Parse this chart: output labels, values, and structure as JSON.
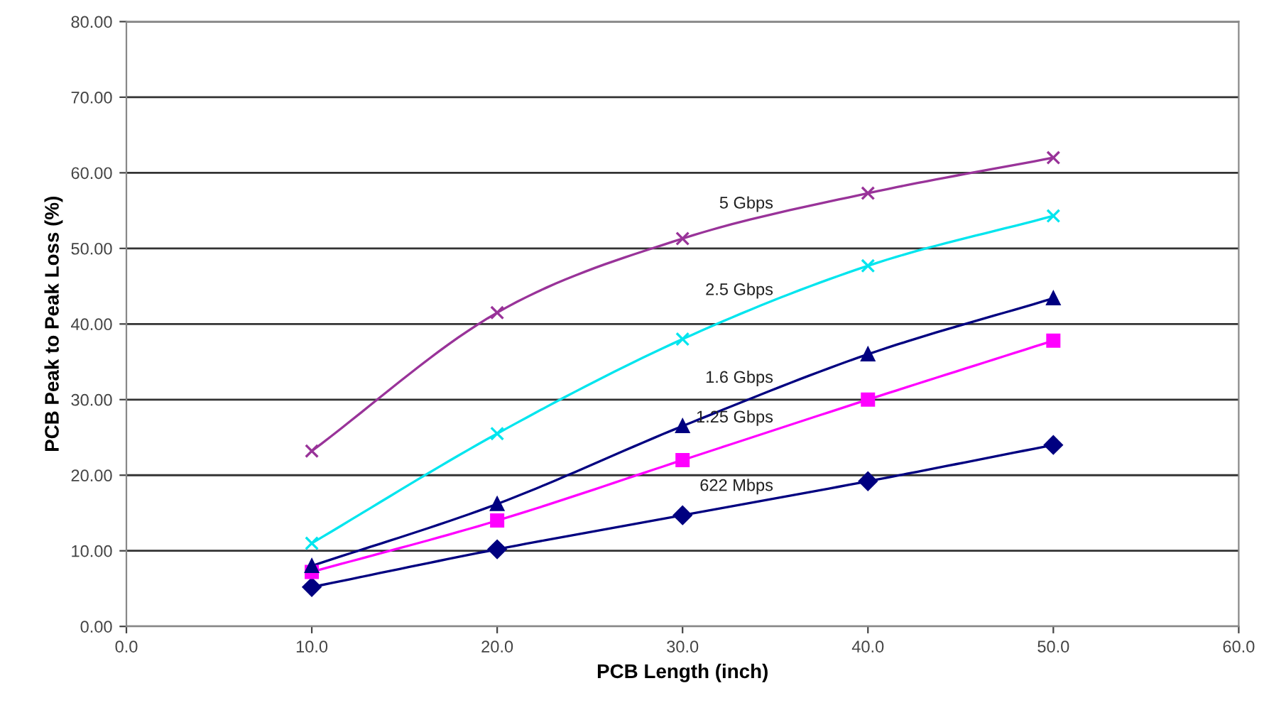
{
  "chart_data": {
    "type": "line",
    "xlabel": "PCB Length (inch)",
    "ylabel": "PCB Peak to Peak Loss (%)",
    "x": [
      10,
      20,
      30,
      40,
      50
    ],
    "series": [
      {
        "name": "5 Gbps",
        "color": "#993399",
        "marker": "cross",
        "values": [
          23.2,
          41.5,
          51.3,
          57.3,
          62.0
        ]
      },
      {
        "name": "2.5 Gbps",
        "color": "#00e5ee",
        "marker": "cross",
        "values": [
          11.0,
          25.5,
          38.0,
          47.7,
          54.3
        ]
      },
      {
        "name": "1.6 Gbps",
        "color": "#000080",
        "marker": "triangle",
        "values": [
          8.0,
          16.2,
          26.5,
          36.0,
          43.4
        ]
      },
      {
        "name": "1.25 Gbps",
        "color": "#ff00ff",
        "marker": "square",
        "values": [
          7.2,
          14.0,
          22.0,
          30.0,
          37.8
        ]
      },
      {
        "name": "622 Mbps",
        "color": "#000080",
        "marker": "diamond",
        "values": [
          5.2,
          10.2,
          14.7,
          19.2,
          24.0
        ]
      }
    ],
    "xlim": [
      0,
      60
    ],
    "ylim": [
      0,
      80
    ],
    "xticks": [
      {
        "value": 0,
        "label": "0.0"
      },
      {
        "value": 10,
        "label": "10.0"
      },
      {
        "value": 20,
        "label": "20.0"
      },
      {
        "value": 30,
        "label": "30.0"
      },
      {
        "value": 40,
        "label": "40.0"
      },
      {
        "value": 50,
        "label": "50.0"
      },
      {
        "value": 60,
        "label": "60.0"
      }
    ],
    "yticks": [
      {
        "value": 0,
        "label": "0.00"
      },
      {
        "value": 10,
        "label": "10.00"
      },
      {
        "value": 20,
        "label": "20.00"
      },
      {
        "value": 30,
        "label": "30.00"
      },
      {
        "value": 40,
        "label": "40.00"
      },
      {
        "value": 50,
        "label": "50.00"
      },
      {
        "value": 60,
        "label": "60.00"
      },
      {
        "value": 70,
        "label": "70.00"
      },
      {
        "value": 80,
        "label": "80.00"
      }
    ],
    "grid": "y"
  }
}
